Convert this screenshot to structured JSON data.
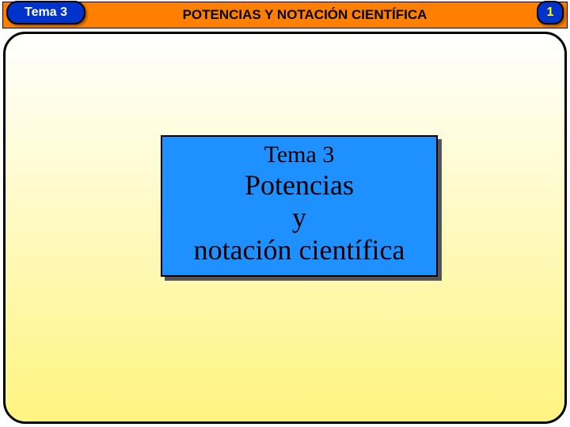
{
  "colors": {
    "header_bg": "#ff7f00",
    "tema_badge_bg": "#0033cc",
    "tema_badge_text": "#ffffff",
    "page_badge_bg": "#0033cc",
    "page_badge_text": "#ffff00",
    "header_title_text": "#000000",
    "content_gradient_top": "#ffffff",
    "content_gradient_bottom": "#fff480",
    "title_box_bg": "#1f90ff",
    "title_box_text": "#000000"
  },
  "header": {
    "tema_label": "Tema 3",
    "title": "POTENCIAS Y NOTACIÓN CIENTÍFICA",
    "page_number": "1"
  },
  "title_box": {
    "subtitle": "Tema 3",
    "line1": "Potencias",
    "line2": "y",
    "line3": "notación científica"
  },
  "typography": {
    "badge_fontsize": 16,
    "header_title_fontsize": 17,
    "subtitle_fontsize": 30,
    "main_fontsize": 36
  }
}
